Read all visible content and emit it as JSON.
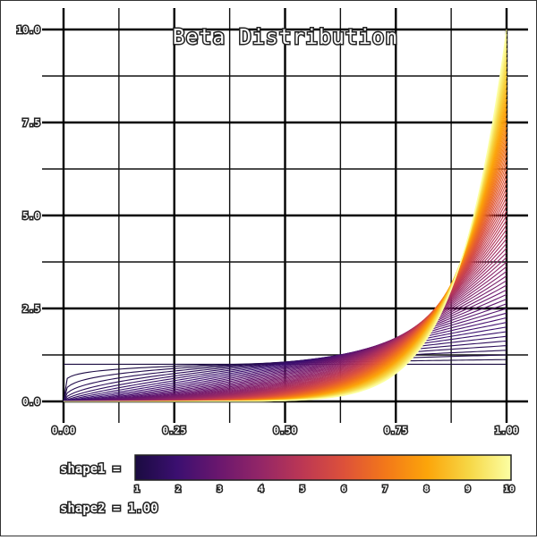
{
  "chart_data": {
    "type": "line",
    "title": "Beta Distribution",
    "xlim": [
      0,
      1
    ],
    "ylim": [
      0,
      10
    ],
    "xticks": [
      "0.00",
      "0.25",
      "0.50",
      "0.75",
      "1.00"
    ],
    "yticks": [
      "0.0",
      "2.5",
      "5.0",
      "7.5",
      "10.0"
    ],
    "grid": true,
    "series_rule": "Beta pdf f(x) = shape1 * x^(shape1 - 1) for shape2 = 1",
    "shape1": {
      "label": "shape1 =",
      "min": 1,
      "max": 10,
      "count": 73
    },
    "shape2": {
      "label": "shape2 =",
      "value": "1.00",
      "text": "shape2 = 1.00"
    },
    "colorbar": {
      "ticks": [
        "1",
        "2",
        "3",
        "4",
        "5",
        "6",
        "7",
        "8",
        "9",
        "10"
      ],
      "colormap": "inferno",
      "colors": [
        "#1a0b40",
        "#3b0f70",
        "#6a176e",
        "#932667",
        "#bc3754",
        "#dd513a",
        "#f37819",
        "#fca50a",
        "#f6d746",
        "#fcffa4"
      ]
    }
  }
}
